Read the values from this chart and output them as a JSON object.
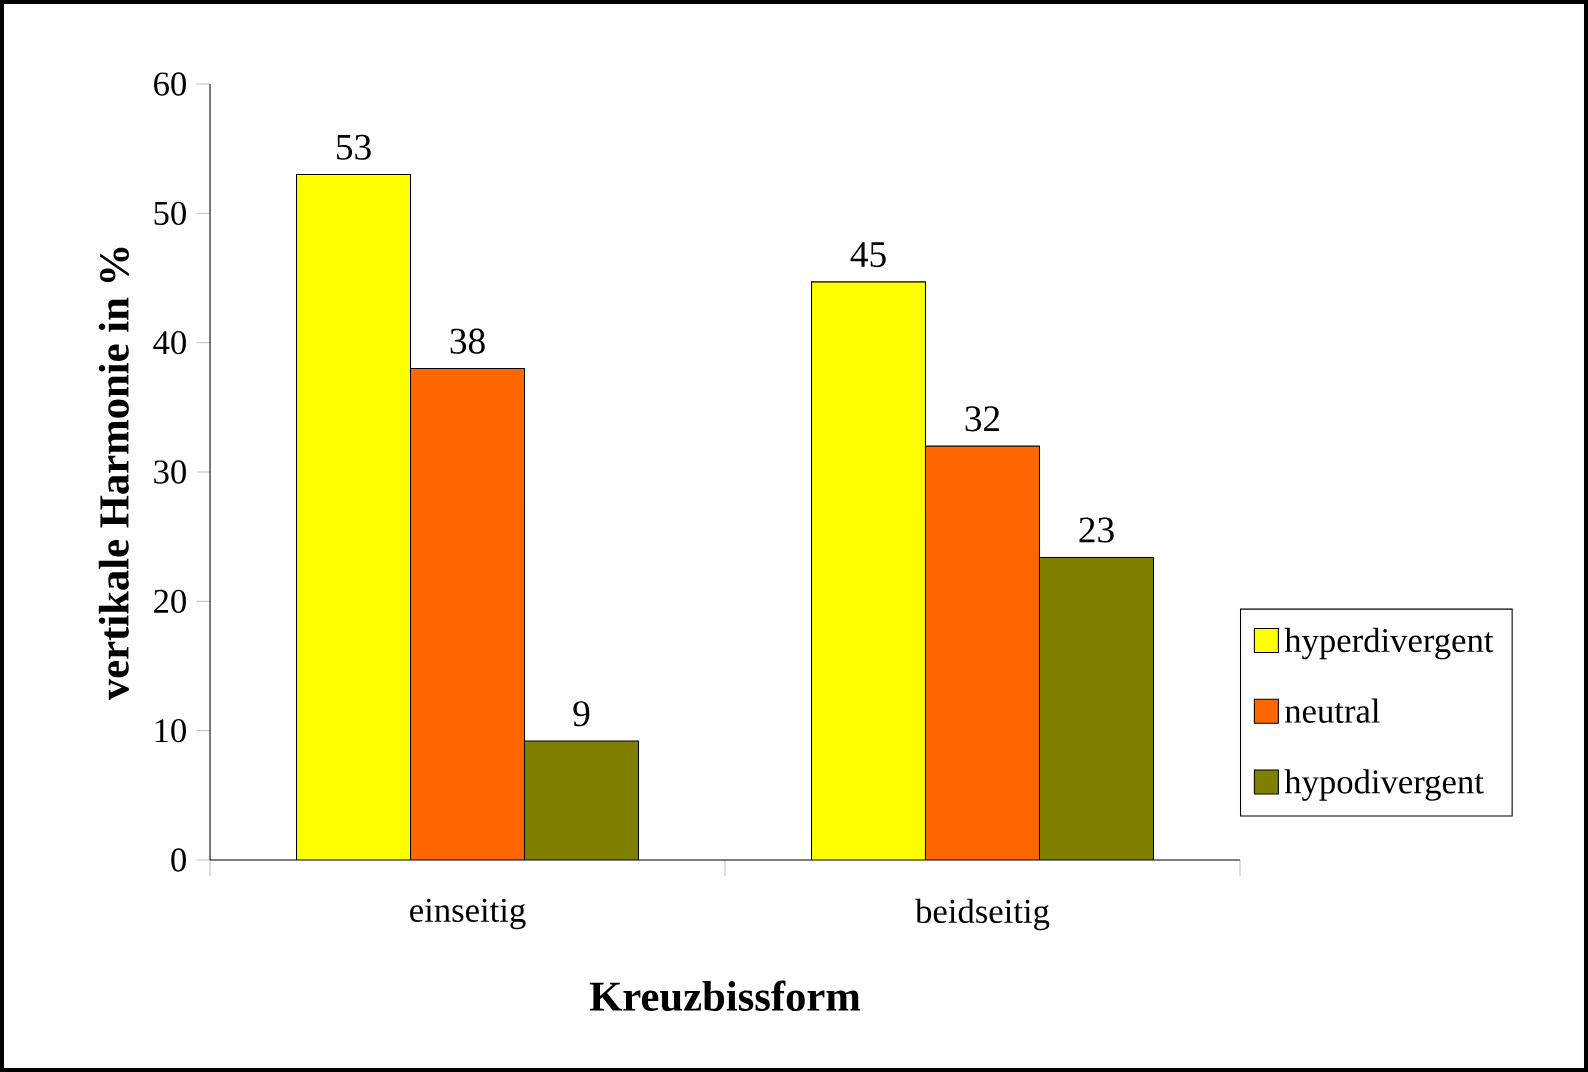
{
  "chart_data": {
    "type": "bar",
    "xlabel": "Kreuzbissform",
    "ylabel": "vertikale Harmonie in %",
    "categories": [
      "einseitig",
      "beidseitig"
    ],
    "series": [
      {
        "name": "hyperdivergent",
        "color": "#ffff00",
        "values": [
          53,
          44.7
        ],
        "value_labels": [
          "53",
          "45"
        ]
      },
      {
        "name": "neutral",
        "color": "#ff6600",
        "values": [
          38,
          32
        ],
        "value_labels": [
          "38",
          "32"
        ]
      },
      {
        "name": "hypodivergent",
        "color": "#808000",
        "values": [
          9.2,
          23.4
        ],
        "value_labels": [
          "9",
          "23"
        ]
      }
    ],
    "ylim": [
      0,
      60
    ],
    "yticks": [
      0,
      10,
      20,
      30,
      40,
      50,
      60
    ],
    "grid": false,
    "legend": "right"
  }
}
